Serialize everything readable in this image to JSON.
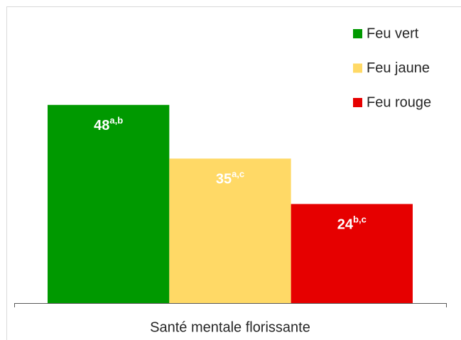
{
  "chart_data": {
    "type": "bar",
    "categories": [
      "Santé mentale florissante"
    ],
    "series": [
      {
        "name": "Feu vert",
        "color": "#009900",
        "values": [
          48
        ],
        "label_superscripts": [
          "a,b"
        ]
      },
      {
        "name": "Feu jaune",
        "color": "#FFD966",
        "values": [
          35
        ],
        "label_superscripts": [
          "a,c"
        ]
      },
      {
        "name": "Feu rouge",
        "color": "#E60000",
        "values": [
          24
        ],
        "label_superscripts": [
          "b,c"
        ]
      }
    ],
    "ylim": [
      0,
      60
    ],
    "legend": "upper right"
  }
}
